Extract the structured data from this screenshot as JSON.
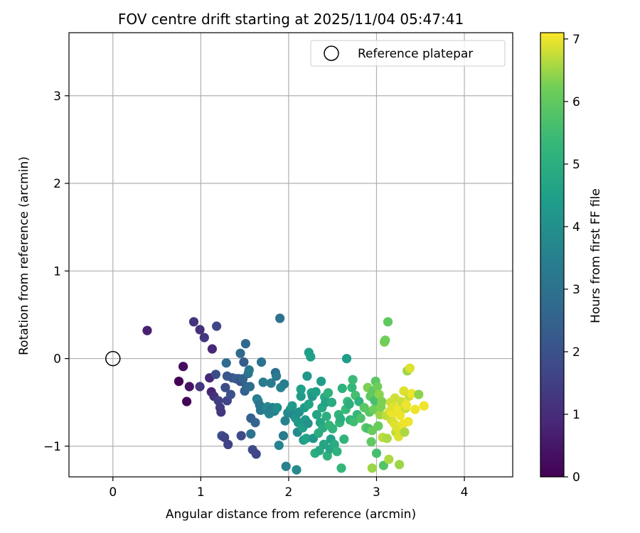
{
  "chart_data": {
    "type": "scatter",
    "title": "FOV centre drift starting at 2025/11/04 05:47:41",
    "xlabel": "Angular distance from reference (arcmin)",
    "ylabel": "Rotation from reference (arcmin)",
    "xlim": [
      -0.5,
      4.55
    ],
    "ylim": [
      -1.35,
      3.72
    ],
    "xticks": [
      0,
      1,
      2,
      3,
      4
    ],
    "yticks": [
      -1,
      0,
      1,
      2,
      3
    ],
    "xtick_labels": [
      "0",
      "1",
      "2",
      "3",
      "4"
    ],
    "ytick_labels": [
      "−1",
      "0",
      "1",
      "2",
      "3"
    ],
    "grid": true,
    "legend": {
      "position": "top-right",
      "entries": [
        {
          "label": "Reference platepar",
          "marker": "open-circle"
        }
      ]
    },
    "reference_point": {
      "x": 0,
      "y": 0
    },
    "colorbar": {
      "label": "Hours from first FF file",
      "min": 0,
      "max": 7.1,
      "ticks": [
        0,
        1,
        2,
        3,
        4,
        5,
        6,
        7
      ],
      "tick_labels": [
        "0",
        "1",
        "2",
        "3",
        "4",
        "5",
        "6",
        "7"
      ],
      "colormap": "viridis"
    },
    "series": [
      {
        "name": "FOV centre drift",
        "points": [
          [
            0.39,
            0.32,
            0.7
          ],
          [
            0.75,
            -0.26,
            0.0
          ],
          [
            0.8,
            -0.09,
            0.2
          ],
          [
            0.84,
            -0.49,
            0.1
          ],
          [
            0.87,
            -0.32,
            0.4
          ],
          [
            0.92,
            0.42,
            1.2
          ],
          [
            0.99,
            -0.32,
            1.3
          ],
          [
            0.99,
            0.33,
            1.1
          ],
          [
            1.04,
            0.24,
            1.3
          ],
          [
            1.1,
            -0.22,
            0.9
          ],
          [
            1.12,
            -0.38,
            0.8
          ],
          [
            1.13,
            0.11,
            0.9
          ],
          [
            1.15,
            -0.43,
            1.1
          ],
          [
            1.17,
            -0.18,
            1.9
          ],
          [
            1.18,
            0.37,
            1.7
          ],
          [
            1.2,
            -0.48,
            1.5
          ],
          [
            1.22,
            -0.56,
            1.4
          ],
          [
            1.23,
            -0.61,
            1.3
          ],
          [
            1.24,
            -0.88,
            1.9
          ],
          [
            1.27,
            -0.9,
            1.6
          ],
          [
            1.28,
            -0.33,
            1.9
          ],
          [
            1.29,
            -0.05,
            2.8
          ],
          [
            1.3,
            -0.48,
            1.7
          ],
          [
            1.3,
            -0.2,
            2.2
          ],
          [
            1.31,
            -0.98,
            1.6
          ],
          [
            1.34,
            -0.41,
            2.0
          ],
          [
            1.36,
            -0.22,
            2.1
          ],
          [
            1.4,
            -0.23,
            2.4
          ],
          [
            1.43,
            -0.23,
            2.3
          ],
          [
            1.45,
            -0.26,
            2.0
          ],
          [
            1.45,
            0.06,
            2.7
          ],
          [
            1.46,
            -0.88,
            1.8
          ],
          [
            1.48,
            -0.23,
            2.5
          ],
          [
            1.49,
            -0.04,
            2.3
          ],
          [
            1.5,
            -0.37,
            2.4
          ],
          [
            1.51,
            0.17,
            2.7
          ],
          [
            1.52,
            -0.32,
            2.6
          ],
          [
            1.54,
            -0.17,
            3.0
          ],
          [
            1.55,
            -0.13,
            3.2
          ],
          [
            1.56,
            -0.32,
            2.8
          ],
          [
            1.57,
            -0.86,
            3.0
          ],
          [
            1.57,
            -0.68,
            2.4
          ],
          [
            1.59,
            -1.04,
            1.8
          ],
          [
            1.62,
            -0.73,
            2.6
          ],
          [
            1.63,
            -1.09,
            1.7
          ],
          [
            1.64,
            -0.46,
            3.3
          ],
          [
            1.65,
            -0.48,
            3.5
          ],
          [
            1.67,
            -0.53,
            3.1
          ],
          [
            1.68,
            -0.59,
            3.2
          ],
          [
            1.69,
            -0.04,
            3.0
          ],
          [
            1.71,
            -0.27,
            3.3
          ],
          [
            1.75,
            -0.59,
            3.4
          ],
          [
            1.76,
            -0.55,
            3.8
          ],
          [
            1.78,
            -0.63,
            3.6
          ],
          [
            1.79,
            -0.59,
            3.4
          ],
          [
            1.8,
            -0.28,
            3.3
          ],
          [
            1.82,
            -0.56,
            3.4
          ],
          [
            1.84,
            -0.6,
            3.5
          ],
          [
            1.85,
            -0.16,
            2.8
          ],
          [
            1.86,
            -0.2,
            3.2
          ],
          [
            1.87,
            -0.56,
            3.9
          ],
          [
            1.89,
            -0.99,
            3.6
          ],
          [
            1.9,
            0.46,
            3.0
          ],
          [
            1.91,
            -0.33,
            3.6
          ],
          [
            1.94,
            -0.88,
            3.3
          ],
          [
            1.95,
            -0.29,
            3.4
          ],
          [
            1.96,
            -0.71,
            3.5
          ],
          [
            1.97,
            -1.23,
            3.5
          ],
          [
            1.99,
            -0.62,
            3.8
          ],
          [
            2.02,
            -0.58,
            4.0
          ],
          [
            2.04,
            -0.54,
            4.3
          ],
          [
            2.06,
            -0.65,
            3.7
          ],
          [
            2.08,
            -0.68,
            4.1
          ],
          [
            2.09,
            -1.27,
            3.8
          ],
          [
            2.1,
            -0.84,
            3.9
          ],
          [
            2.11,
            -0.73,
            4.2
          ],
          [
            2.12,
            -0.61,
            4.0
          ],
          [
            2.14,
            -0.43,
            4.3
          ],
          [
            2.14,
            -0.35,
            4.5
          ],
          [
            2.16,
            -0.79,
            4.5
          ],
          [
            2.17,
            -0.93,
            4.4
          ],
          [
            2.18,
            -0.56,
            4.4
          ],
          [
            2.19,
            -0.7,
            4.3
          ],
          [
            2.2,
            -0.91,
            4.6
          ],
          [
            2.21,
            -0.2,
            4.2
          ],
          [
            2.22,
            -0.74,
            4.1
          ],
          [
            2.23,
            -0.52,
            4.6
          ],
          [
            2.23,
            0.07,
            4.4
          ],
          [
            2.25,
            0.02,
            4.5
          ],
          [
            2.26,
            -0.39,
            4.6
          ],
          [
            2.27,
            -0.43,
            4.2
          ],
          [
            2.28,
            -0.91,
            4.2
          ],
          [
            2.3,
            -1.08,
            5.0
          ],
          [
            2.31,
            -0.38,
            4.5
          ],
          [
            2.32,
            -0.64,
            4.7
          ],
          [
            2.34,
            -0.85,
            4.9
          ],
          [
            2.35,
            -1.05,
            4.8
          ],
          [
            2.36,
            -0.73,
            4.7
          ],
          [
            2.37,
            -0.26,
            4.4
          ],
          [
            2.38,
            -0.56,
            4.8
          ],
          [
            2.39,
            -0.79,
            4.9
          ],
          [
            2.4,
            -0.98,
            4.7
          ],
          [
            2.41,
            -0.44,
            4.9
          ],
          [
            2.42,
            -0.5,
            4.6
          ],
          [
            2.43,
            -0.66,
            5.0
          ],
          [
            2.44,
            -1.11,
            5.1
          ],
          [
            2.45,
            -0.39,
            5.1
          ],
          [
            2.46,
            -0.76,
            5.3
          ],
          [
            2.47,
            -1.03,
            4.7
          ],
          [
            2.48,
            -0.92,
            4.5
          ],
          [
            2.49,
            -0.5,
            4.9
          ],
          [
            2.5,
            -0.8,
            5.2
          ],
          [
            2.52,
            -0.98,
            4.9
          ],
          [
            2.55,
            -1.06,
            5.1
          ],
          [
            2.57,
            -0.64,
            5.2
          ],
          [
            2.58,
            -0.73,
            5.3
          ],
          [
            2.59,
            -0.69,
            5.0
          ],
          [
            2.6,
            -1.25,
            5.3
          ],
          [
            2.61,
            -0.34,
            5.1
          ],
          [
            2.63,
            -0.92,
            5.2
          ],
          [
            2.65,
            -0.58,
            5.4
          ],
          [
            2.66,
            0.0,
            4.4
          ],
          [
            2.67,
            -0.49,
            5.4
          ],
          [
            2.69,
            -0.52,
            5.0
          ],
          [
            2.7,
            -0.7,
            5.2
          ],
          [
            2.72,
            -0.33,
            5.3
          ],
          [
            2.73,
            -0.24,
            5.4
          ],
          [
            2.74,
            -0.72,
            5.5
          ],
          [
            2.76,
            -0.42,
            5.6
          ],
          [
            2.78,
            -0.64,
            5.3
          ],
          [
            2.8,
            -0.49,
            5.1
          ],
          [
            2.82,
            -0.68,
            5.7
          ],
          [
            2.86,
            -0.56,
            5.9
          ],
          [
            2.88,
            -0.79,
            5.9
          ],
          [
            2.9,
            -0.33,
            6.3
          ],
          [
            2.91,
            -0.8,
            5.6
          ],
          [
            2.92,
            -0.61,
            5.9
          ],
          [
            2.93,
            -0.43,
            6.0
          ],
          [
            2.94,
            -0.95,
            6.0
          ],
          [
            2.95,
            -1.25,
            6.5
          ],
          [
            2.95,
            -0.82,
            6.1
          ],
          [
            2.96,
            -0.37,
            6.0
          ],
          [
            2.97,
            -0.58,
            6.2
          ],
          [
            2.98,
            -0.48,
            5.6
          ],
          [
            2.99,
            -0.26,
            5.9
          ],
          [
            3.0,
            -1.08,
            5.6
          ],
          [
            3.01,
            -0.32,
            6.2
          ],
          [
            3.02,
            -0.77,
            6.1
          ],
          [
            3.03,
            -0.41,
            6.4
          ],
          [
            3.04,
            -0.64,
            6.5
          ],
          [
            3.05,
            -0.55,
            6.3
          ],
          [
            3.06,
            -0.49,
            6.3
          ],
          [
            3.07,
            -0.9,
            6.7
          ],
          [
            3.08,
            -1.22,
            5.8
          ],
          [
            3.09,
            0.19,
            6.3
          ],
          [
            3.1,
            0.21,
            6.2
          ],
          [
            3.11,
            -0.65,
            6.7
          ],
          [
            3.12,
            -0.91,
            6.6
          ],
          [
            3.13,
            0.42,
            6.0
          ],
          [
            3.14,
            -1.15,
            6.6
          ],
          [
            3.15,
            -0.6,
            6.9
          ],
          [
            3.16,
            -0.5,
            6.8
          ],
          [
            3.17,
            -0.7,
            6.8
          ],
          [
            3.18,
            -0.62,
            7.0
          ],
          [
            3.19,
            -0.55,
            6.9
          ],
          [
            3.2,
            -0.74,
            6.9
          ],
          [
            3.21,
            -0.45,
            6.8
          ],
          [
            3.22,
            -0.84,
            6.7
          ],
          [
            3.23,
            -0.79,
            6.9
          ],
          [
            3.24,
            -0.58,
            7.0
          ],
          [
            3.25,
            -0.89,
            6.9
          ],
          [
            3.26,
            -1.21,
            6.5
          ],
          [
            3.27,
            -0.65,
            7.0
          ],
          [
            3.28,
            -0.49,
            6.8
          ],
          [
            3.3,
            -0.75,
            7.0
          ],
          [
            3.31,
            -0.37,
            6.9
          ],
          [
            3.32,
            -0.84,
            6.6
          ],
          [
            3.33,
            -0.57,
            6.8
          ],
          [
            3.34,
            -0.53,
            7.0
          ],
          [
            3.35,
            -0.14,
            6.5
          ],
          [
            3.36,
            -0.72,
            7.0
          ],
          [
            3.37,
            -0.43,
            6.8
          ],
          [
            3.38,
            -0.11,
            6.9
          ],
          [
            3.4,
            -0.4,
            7.0
          ],
          [
            3.44,
            -0.58,
            7.0
          ],
          [
            3.48,
            -0.41,
            6.4
          ],
          [
            3.54,
            -0.54,
            7.0
          ]
        ]
      }
    ]
  }
}
